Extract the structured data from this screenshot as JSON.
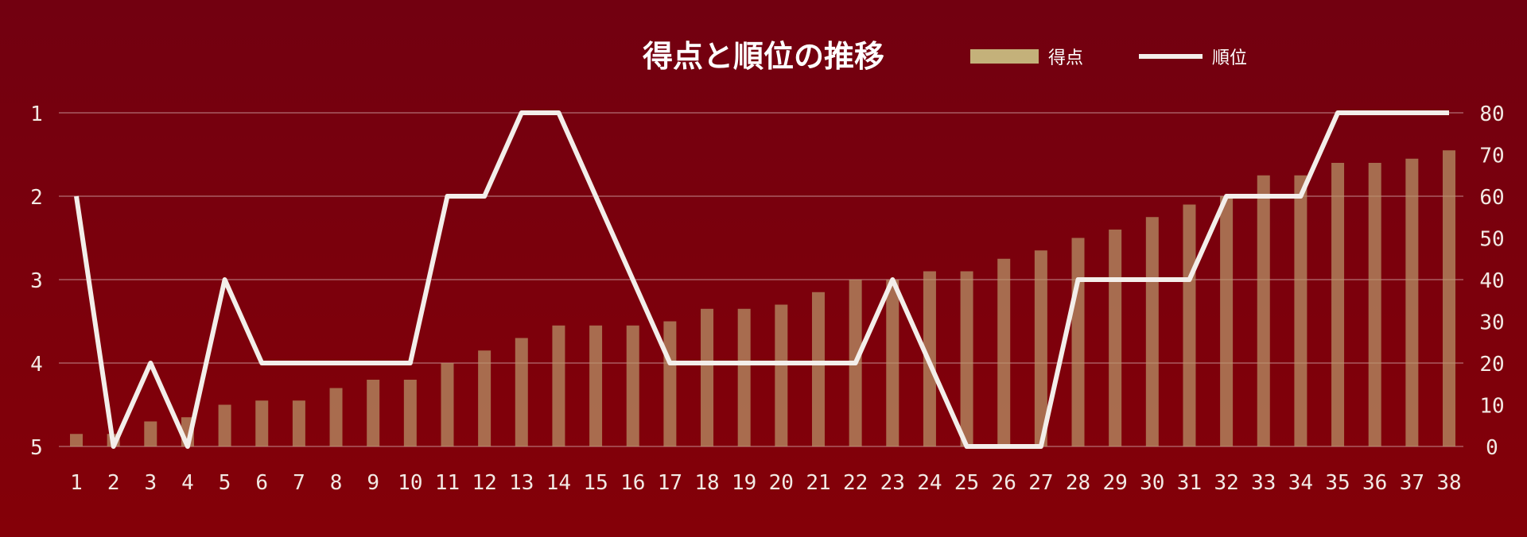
{
  "chart_data": {
    "type": "bar+line",
    "title": "得点と順位の推移",
    "categories": [
      "1",
      "2",
      "3",
      "4",
      "5",
      "6",
      "7",
      "8",
      "9",
      "10",
      "11",
      "12",
      "13",
      "14",
      "15",
      "16",
      "17",
      "18",
      "19",
      "20",
      "21",
      "22",
      "23",
      "24",
      "25",
      "26",
      "27",
      "28",
      "29",
      "30",
      "31",
      "32",
      "33",
      "34",
      "35",
      "36",
      "37",
      "38"
    ],
    "series": [
      {
        "name": "得点",
        "kind": "bar",
        "axis": "right",
        "color": "#b8956a",
        "values": [
          3,
          3,
          6,
          7,
          10,
          11,
          11,
          14,
          16,
          16,
          20,
          23,
          26,
          29,
          29,
          29,
          30,
          33,
          33,
          34,
          37,
          40,
          40,
          42,
          42,
          45,
          47,
          50,
          52,
          55,
          58,
          60,
          65,
          65,
          68,
          68,
          69,
          71
        ]
      },
      {
        "name": "順位",
        "kind": "line",
        "axis": "left",
        "color": "#f3eeea",
        "values": [
          2,
          5.5,
          4,
          5,
          3,
          4,
          4,
          4,
          4,
          4,
          2,
          2,
          1,
          1,
          2,
          3,
          4,
          4,
          4,
          4,
          4,
          4,
          3,
          4,
          5,
          5,
          5,
          3,
          3,
          3,
          3,
          2,
          2,
          2,
          1,
          1,
          1,
          1
        ]
      }
    ],
    "y_left": {
      "ticks": [
        "1",
        "2",
        "3",
        "4",
        "5"
      ],
      "min": 1,
      "max": 5,
      "inverted": true
    },
    "y_right": {
      "ticks": [
        "0",
        "10",
        "20",
        "30",
        "40",
        "50",
        "60",
        "70",
        "80"
      ],
      "min": 0,
      "max": 80
    },
    "grid": true,
    "legend_position": "top"
  }
}
